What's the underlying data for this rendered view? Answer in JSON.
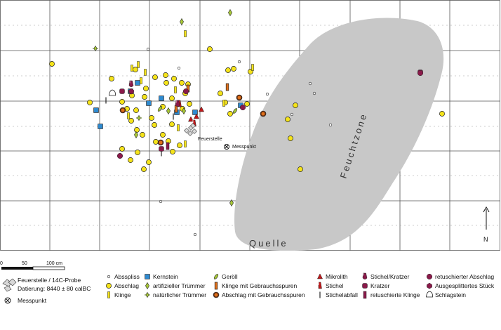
{
  "plan": {
    "labels": {
      "fireplace": "Feuerstelle",
      "measure_point": "Messpunkt",
      "wet_zone": "Feuchtzone",
      "spring": "Quelle",
      "north": "N"
    }
  },
  "scale_bar": {
    "ticks": [
      "0",
      "50",
      "100 cm"
    ]
  },
  "legend": {
    "fireplace_sample": {
      "line1": "Feuerstelle / 14C-Probe",
      "line2": "Datierung: 8440 ± 80 calBC"
    },
    "measure_point": "Messpunkt",
    "items": [
      {
        "label": "Absspliss",
        "symbol": "small-circle",
        "color": "#ffffff"
      },
      {
        "label": "Abschlag",
        "symbol": "circle",
        "color": "#f5e31a"
      },
      {
        "label": "Klinge",
        "symbol": "bar",
        "color": "#f5e31a"
      },
      {
        "label": "Kernstein",
        "symbol": "square",
        "color": "#2e8bd1"
      },
      {
        "label": "artifizieller Trümmer",
        "symbol": "diamond",
        "color": "#a8c838"
      },
      {
        "label": "natürlicher Trümmer",
        "symbol": "star-diamond",
        "color": "#a8c838"
      },
      {
        "label": "Geröll",
        "symbol": "leaf",
        "color": "#a8c838"
      },
      {
        "label": "Klinge mit Gebrauchsspuren",
        "symbol": "bar-outlined",
        "color": "#e0701a"
      },
      {
        "label": "Abschlag mit Gebrauchsspuren",
        "symbol": "circle-outlined",
        "color": "#e0701a"
      },
      {
        "label": "Mikrolith",
        "symbol": "triangle",
        "color": "#c0181a"
      },
      {
        "label": "Stichel",
        "symbol": "burin",
        "color": "#c0181a"
      },
      {
        "label": "Stichelabfall",
        "symbol": "line",
        "color": "#111111"
      },
      {
        "label": "Stichel/Kratzer",
        "symbol": "burin-scraper",
        "color": "#8a1a4a"
      },
      {
        "label": "Kratzer",
        "symbol": "rounded-square",
        "color": "#8a1a4a"
      },
      {
        "label": "retuschierte Klinge",
        "symbol": "dark-bar",
        "color": "#8a1a4a"
      },
      {
        "label": "retuschierter Abschlag",
        "symbol": "dark-circle",
        "color": "#8a1a4a"
      },
      {
        "label": "Ausgesplittertes Stück",
        "symbol": "dark-hexagon",
        "color": "#8a1a4a"
      },
      {
        "label": "Schlagstein",
        "symbol": "stone",
        "color": "#ffffff"
      }
    ]
  },
  "colors": {
    "grid": "#555555",
    "wet_zone": "#c8c8c8",
    "yellow": "#f5e31a",
    "blue": "#2e8bd1",
    "green": "#a8c838",
    "orange": "#e0701a",
    "red": "#c0181a",
    "maroon": "#8a1a4a"
  }
}
